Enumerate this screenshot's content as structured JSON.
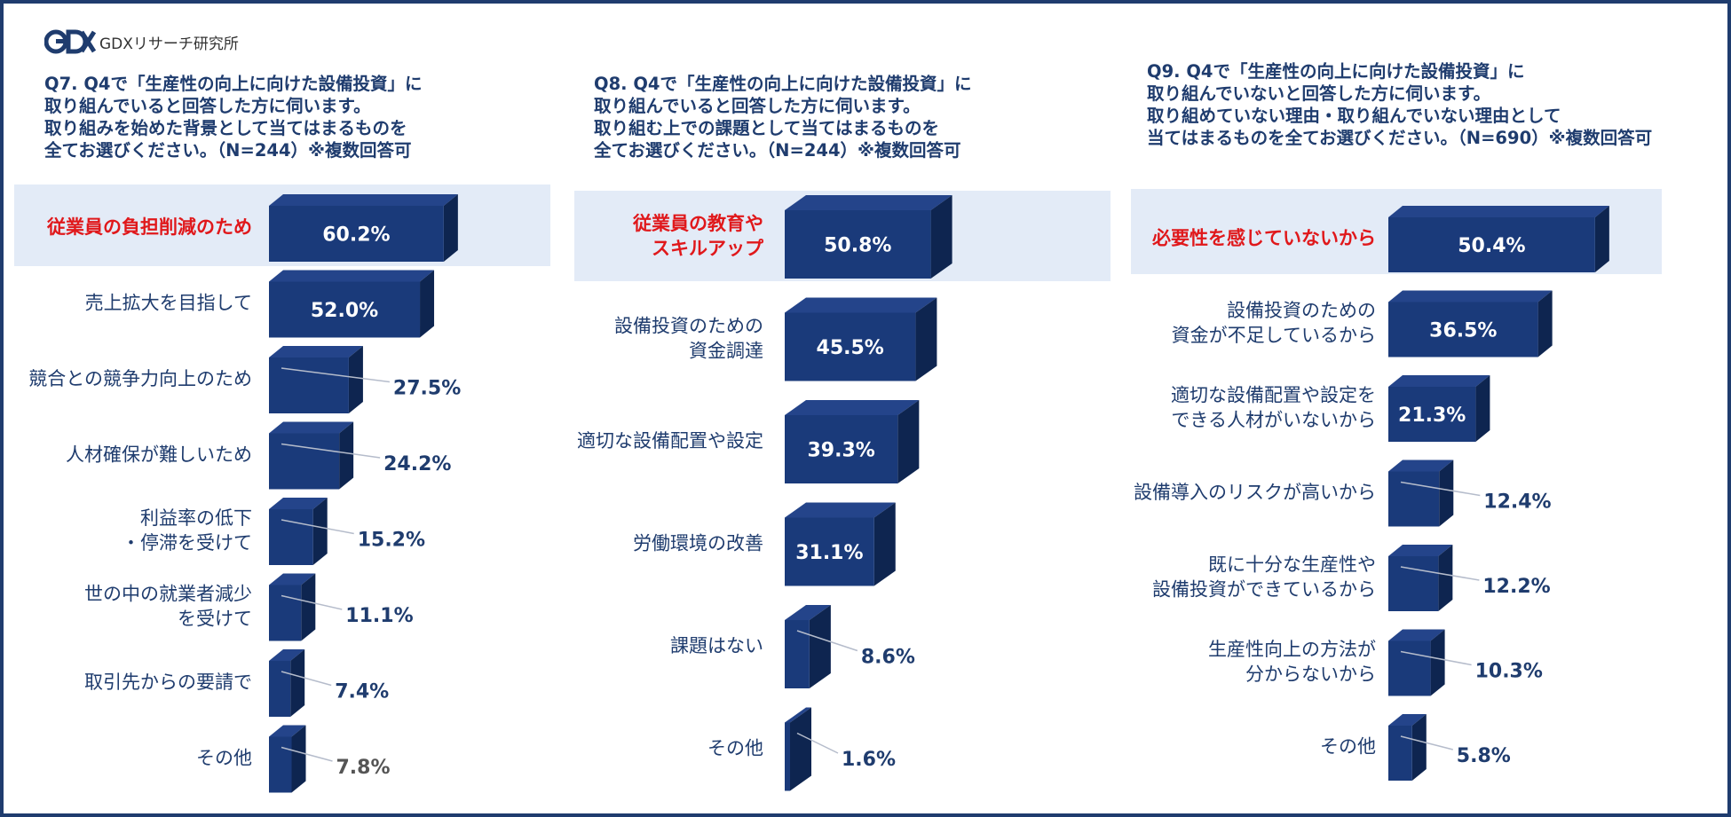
{
  "brand": {
    "name": "GDXリサーチ研究所"
  },
  "colors": {
    "bar_front": "#1a3a7a",
    "bar_top": "#24448a",
    "bar_side": "#0e2550",
    "label": "#1f3c6e",
    "highlight_label": "#e0181b",
    "highlight_bg": "#e3ebf7",
    "leader": "#b5bccb",
    "outside_value": "#1f3c6e",
    "other_value": "#555555"
  },
  "chart_data": [
    {
      "type": "bar",
      "title": [
        "Q7. Q4で「生産性の向上に向けた設備投資」に",
        "取り組んでいると回答した方に伺います。",
        "取り組みを始めた背景として当てはまるものを",
        "全てお選びください。（N=244）※複数回答可"
      ],
      "categories": [
        [
          "従業員の負担削減のため"
        ],
        [
          "売上拡大を目指して"
        ],
        [
          "競合との競争力向上のため"
        ],
        [
          "人材確保が難しいため"
        ],
        [
          "利益率の低下",
          "・停滞を受けて"
        ],
        [
          "世の中の就業者減少",
          "を受けて"
        ],
        [
          "取引先からの要請で"
        ],
        [
          "その他"
        ]
      ],
      "values": [
        60.2,
        52.0,
        27.5,
        24.2,
        15.2,
        11.1,
        7.4,
        7.8
      ],
      "labels": [
        "60.2%",
        "52.0%",
        "27.5%",
        "24.2%",
        "15.2%",
        "11.1%",
        "7.4%",
        "7.8%"
      ],
      "highlight": 0,
      "xlim": [
        0,
        100
      ]
    },
    {
      "type": "bar",
      "title": [
        "Q8. Q4で「生産性の向上に向けた設備投資」に",
        "取り組んでいると回答した方に伺います。",
        "取り組む上での課題として当てはまるものを",
        "全てお選びください。（N=244）※複数回答可"
      ],
      "categories": [
        [
          "従業員の教育や",
          "スキルアップ"
        ],
        [
          "設備投資のための",
          "資金調達"
        ],
        [
          "適切な設備配置や設定"
        ],
        [
          "労働環境の改善"
        ],
        [
          "課題はない"
        ],
        [
          "その他"
        ]
      ],
      "values": [
        50.8,
        45.5,
        39.3,
        31.1,
        8.6,
        1.6
      ],
      "labels": [
        "50.8%",
        "45.5%",
        "39.3%",
        "31.1%",
        "8.6%",
        "1.6%"
      ],
      "highlight": 0,
      "xlim": [
        0,
        100
      ]
    },
    {
      "type": "bar",
      "title": [
        "Q9. Q4で「生産性の向上に向けた設備投資」に",
        "取り組んでいないと回答した方に伺います。",
        "取り組めていない理由・取り組んでいない理由として",
        "当てはまるものを全てお選びください。（N=690）※複数回答可"
      ],
      "categories": [
        [
          "必要性を感じていないから"
        ],
        [
          "設備投資のための",
          "資金が不足しているから"
        ],
        [
          "適切な設備配置や設定を",
          "できる人材がいないから"
        ],
        [
          "設備導入のリスクが高いから"
        ],
        [
          "既に十分な生産性や",
          "設備投資ができているから"
        ],
        [
          "生産性向上の方法が",
          "分からないから"
        ],
        [
          "その他"
        ]
      ],
      "values": [
        50.4,
        36.5,
        21.3,
        12.4,
        12.2,
        10.3,
        5.8
      ],
      "labels": [
        "50.4%",
        "36.5%",
        "21.3%",
        "12.4%",
        "12.2%",
        "10.3%",
        "5.8%"
      ],
      "highlight": 0,
      "xlim": [
        0,
        100
      ]
    }
  ]
}
